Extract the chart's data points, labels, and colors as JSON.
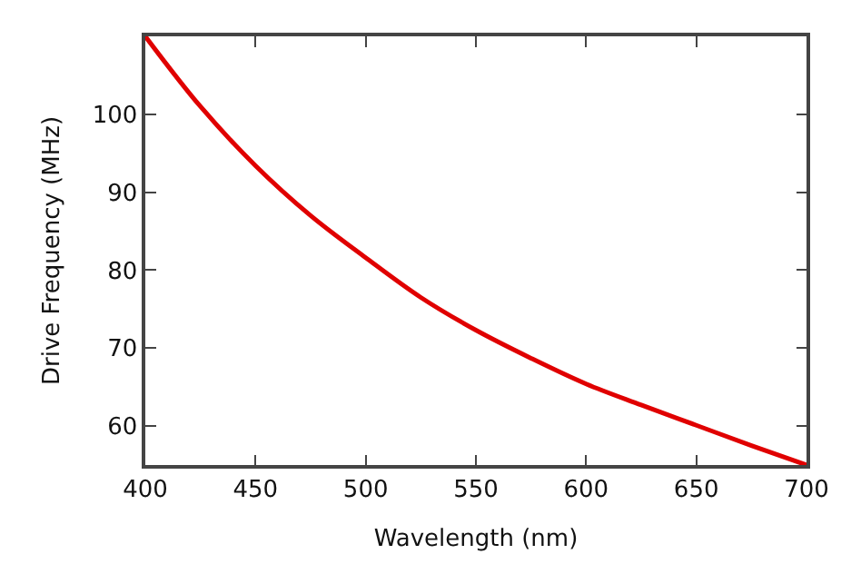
{
  "chart_data": {
    "type": "line",
    "xlabel": "Wavelength (nm)",
    "ylabel": "Drive Frequency (MHz)",
    "x": [
      400,
      425,
      450,
      475,
      500,
      525,
      550,
      575,
      600,
      625,
      650,
      675,
      700
    ],
    "series": [
      {
        "color": "#e00000",
        "values": [
          110,
          101,
          93.4,
          87,
          81.6,
          76.5,
          72.3,
          68.7,
          65.4,
          62.7,
          60.1,
          57.5,
          55
        ]
      }
    ],
    "xlim": [
      400,
      700
    ],
    "xticks": [
      400,
      450,
      500,
      550,
      600,
      650,
      700
    ],
    "ylim": [
      55,
      110
    ],
    "yticks": [
      60,
      70,
      80,
      90,
      100
    ],
    "legend": false,
    "marker": "none",
    "line_style": "solid"
  }
}
